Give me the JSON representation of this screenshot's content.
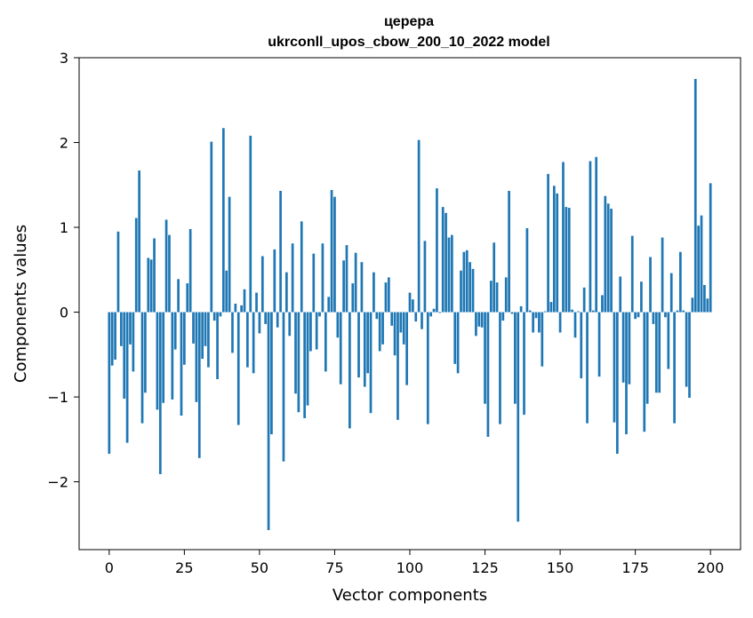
{
  "chart_data": {
    "type": "bar",
    "title_line1": "церера",
    "title_line2": "ukrconll_upos_cbow_200_10_2022 model",
    "xlabel": "Vector components",
    "ylabel": "Components values",
    "xlim": [
      -10,
      210
    ],
    "ylim": [
      -2.8,
      3.0
    ],
    "xticks": [
      0,
      25,
      50,
      75,
      100,
      125,
      150,
      175,
      200
    ],
    "yticks": [
      -2,
      -1,
      0,
      1,
      2,
      3
    ],
    "ytick_labels": [
      "−2",
      "−1",
      "0",
      "1",
      "2",
      "3"
    ],
    "bar_color": "#1f77b4",
    "grid": false,
    "values": [
      -1.67,
      -0.63,
      -0.56,
      0.95,
      -0.4,
      -1.02,
      -1.54,
      -0.38,
      -0.7,
      1.11,
      1.67,
      -1.31,
      -0.95,
      0.64,
      0.62,
      0.87,
      -1.15,
      -1.91,
      -1.07,
      1.09,
      0.91,
      -1.03,
      -0.44,
      0.39,
      -1.22,
      -0.62,
      0.34,
      0.98,
      -0.37,
      -1.06,
      -1.72,
      -0.55,
      -0.4,
      -0.65,
      2.01,
      -0.1,
      -0.79,
      -0.05,
      2.17,
      0.49,
      1.36,
      -0.48,
      0.1,
      -1.33,
      0.08,
      0.27,
      -0.65,
      2.08,
      -0.72,
      0.23,
      -0.25,
      0.66,
      -0.14,
      -2.57,
      -1.44,
      0.74,
      -0.18,
      1.43,
      -1.76,
      0.47,
      -0.28,
      0.81,
      -0.96,
      -1.18,
      1.07,
      -1.25,
      -1.1,
      -0.46,
      0.69,
      -0.44,
      -0.05,
      0.81,
      -0.7,
      0.18,
      1.44,
      1.36,
      -0.3,
      -0.85,
      0.61,
      0.79,
      -1.37,
      0.34,
      0.7,
      -0.77,
      0.59,
      -0.88,
      -0.72,
      -1.19,
      0.47,
      -0.08,
      -0.46,
      -0.38,
      0.35,
      0.41,
      -0.16,
      -0.51,
      -1.27,
      -0.24,
      -0.38,
      -0.86,
      0.23,
      0.15,
      -0.11,
      2.03,
      -0.2,
      0.84,
      -1.32,
      -0.05,
      0.04,
      1.46,
      -0.01,
      1.24,
      1.17,
      0.88,
      0.91,
      -0.61,
      -0.72,
      0.49,
      0.71,
      0.73,
      0.59,
      0.51,
      -0.28,
      -0.17,
      -0.18,
      -1.08,
      -1.47,
      0.37,
      0.82,
      0.35,
      -1.32,
      -0.1,
      0.41,
      1.43,
      -0.02,
      -1.08,
      -2.47,
      0.07,
      -1.21,
      0.99,
      0.02,
      -0.24,
      -0.07,
      -0.24,
      -0.64,
      0.01,
      1.63,
      0.12,
      1.49,
      1.4,
      -0.24,
      1.77,
      1.24,
      1.23,
      0.03,
      -0.3,
      0.01,
      -0.78,
      0.29,
      -1.31,
      1.78,
      0.02,
      1.83,
      -0.76,
      0.2,
      1.37,
      1.28,
      1.22,
      -1.3,
      -1.67,
      0.42,
      -0.83,
      -1.44,
      -0.85,
      0.9,
      -0.08,
      -0.06,
      0.36,
      -1.41,
      -1.08,
      0.65,
      -0.14,
      -0.95,
      -0.95,
      0.88,
      -0.06,
      -0.67,
      0.46,
      -1.31,
      0.02,
      0.71,
      0.02,
      -0.88,
      -1.01,
      0.17,
      2.75,
      1.02,
      1.14,
      0.32,
      0.16,
      1.52
    ]
  }
}
